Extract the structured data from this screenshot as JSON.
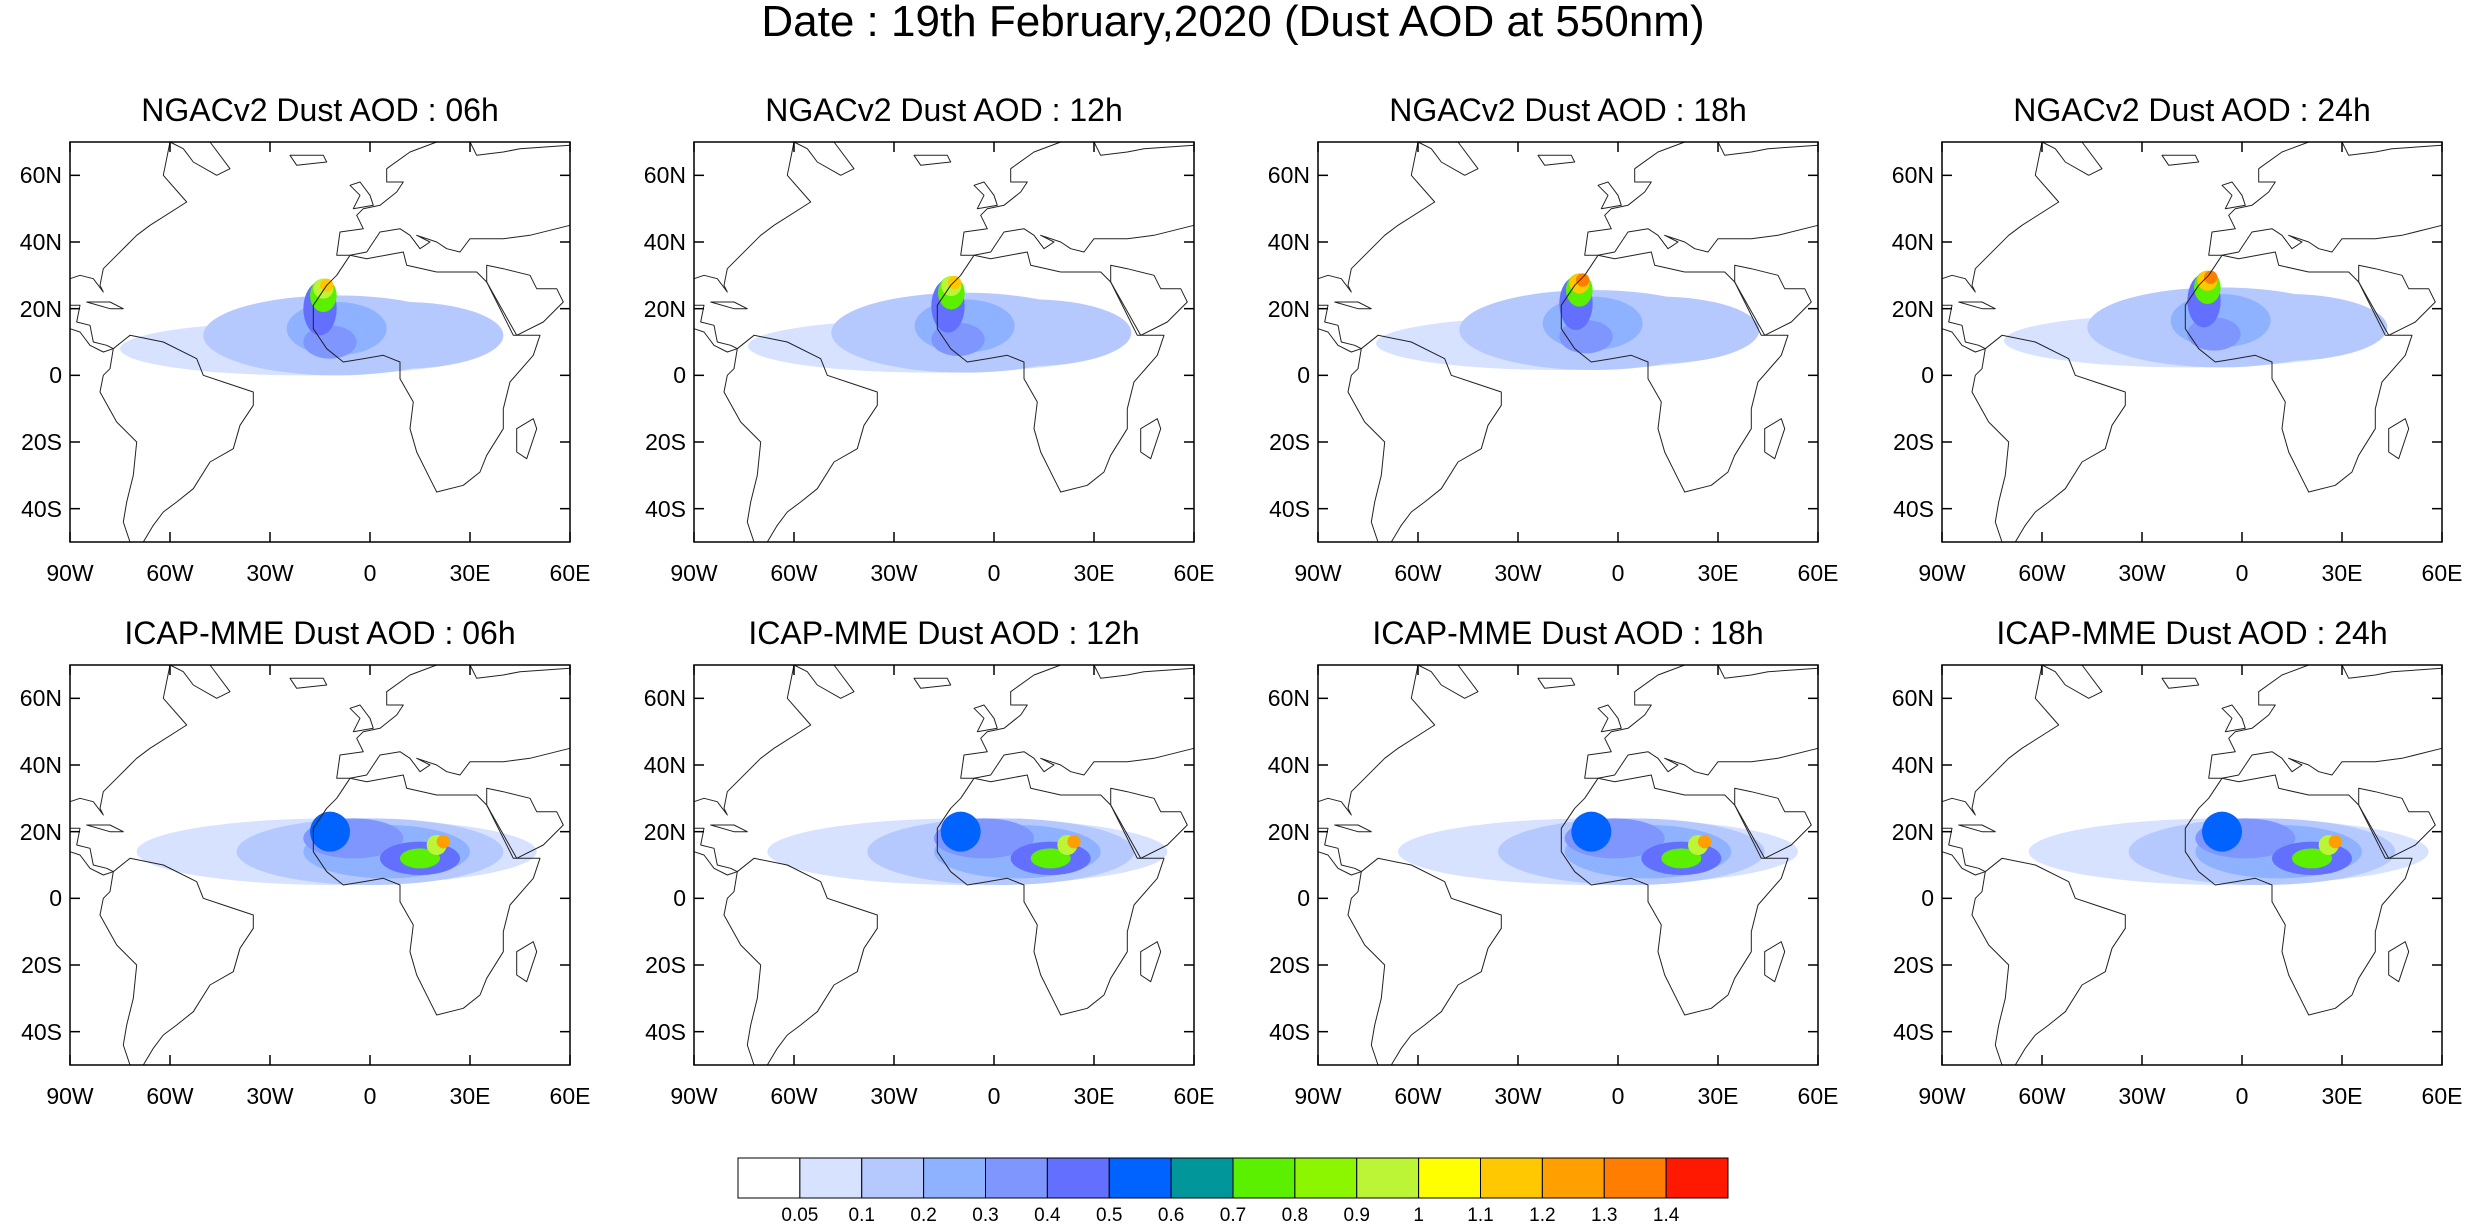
{
  "figure": {
    "title": "Date : 19th February,2020 (Dust AOD at 550nm)"
  },
  "axes": {
    "lat_ticks": [
      "60N",
      "40N",
      "20N",
      "0",
      "20S",
      "40S"
    ],
    "lat_values": [
      60,
      40,
      20,
      0,
      -20,
      -40
    ],
    "lon_ticks": [
      "90W",
      "60W",
      "30W",
      "0",
      "30E",
      "60E"
    ],
    "lon_values": [
      -90,
      -60,
      -30,
      0,
      30,
      60
    ],
    "lat_range": [
      -50,
      70
    ],
    "lon_range": [
      -90,
      60
    ]
  },
  "panels": [
    {
      "title": "NGACv2 Dust AOD : 06h",
      "model": "ngac",
      "hour": 6
    },
    {
      "title": "NGACv2 Dust AOD : 12h",
      "model": "ngac",
      "hour": 12
    },
    {
      "title": "NGACv2 Dust AOD : 18h",
      "model": "ngac",
      "hour": 18
    },
    {
      "title": "NGACv2 Dust AOD : 24h",
      "model": "ngac",
      "hour": 24
    },
    {
      "title": "ICAP-MME Dust AOD : 06h",
      "model": "icap",
      "hour": 6
    },
    {
      "title": "ICAP-MME Dust AOD : 12h",
      "model": "icap",
      "hour": 12
    },
    {
      "title": "ICAP-MME Dust AOD : 18h",
      "model": "icap",
      "hour": 18
    },
    {
      "title": "ICAP-MME Dust AOD : 24h",
      "model": "icap",
      "hour": 24
    }
  ],
  "colorbar": {
    "labels": [
      "0.05",
      "0.1",
      "0.2",
      "0.3",
      "0.4",
      "0.5",
      "0.6",
      "0.7",
      "0.8",
      "0.9",
      "1",
      "1.1",
      "1.2",
      "1.3",
      "1.4"
    ],
    "colors": [
      "#ffffff",
      "#d6e2ff",
      "#b5c9ff",
      "#8eb2ff",
      "#7f96ff",
      "#6370ff",
      "#0063ff",
      "#00969a",
      "#5af000",
      "#8cf500",
      "#bbf536",
      "#ffff00",
      "#ffc800",
      "#ffa000",
      "#ff7d00",
      "#ff1900"
    ]
  }
}
